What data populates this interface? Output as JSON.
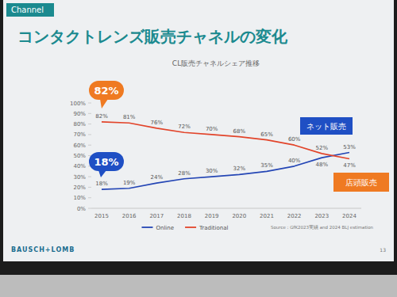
{
  "slide": {
    "tag": "Channel",
    "heading": "コンタクトレンズ販売チャネルの変化",
    "brand": "BAUSCH+LOMB",
    "page": 13
  },
  "chart_data": {
    "type": "line",
    "title": "CL販売チャネルシェア推移",
    "categories": [
      "2015",
      "2016",
      "2017",
      "2018",
      "2019",
      "2020",
      "2021",
      "2022",
      "2023",
      "2024"
    ],
    "series": [
      {
        "name": "Online",
        "color": "#2446b5",
        "values": [
          18,
          19,
          24,
          28,
          30,
          32,
          35,
          40,
          48,
          53
        ],
        "value_labels": [
          "18%",
          "19%",
          "24%",
          "28%",
          "30%",
          "32%",
          "35%",
          "40%",
          "48%",
          "53%"
        ]
      },
      {
        "name": "Traditional",
        "color": "#e2442a",
        "values": [
          82,
          81,
          76,
          72,
          70,
          68,
          65,
          60,
          52,
          47
        ],
        "value_labels": [
          "82%",
          "81%",
          "76%",
          "72%",
          "70%",
          "68%",
          "65%",
          "60%",
          "52%",
          "47%"
        ]
      }
    ],
    "ylim": [
      0,
      100
    ],
    "yticks": [
      {
        "value": 0,
        "label": "0%"
      },
      {
        "value": 10,
        "label": "10%"
      },
      {
        "value": 20,
        "label": "20%"
      },
      {
        "value": 30,
        "label": "30%"
      },
      {
        "value": 40,
        "label": "40%"
      },
      {
        "value": 50,
        "label": "50%"
      },
      {
        "value": 60,
        "label": "60%"
      },
      {
        "value": 70,
        "label": "70%"
      },
      {
        "value": 80,
        "label": "80%"
      },
      {
        "value": 90,
        "label": "90%"
      },
      {
        "value": 100,
        "label": "100%"
      }
    ],
    "grid": false,
    "legend": "bottom",
    "data_labels": true,
    "source": "Source : GfK2023実績 and 2024 BLJ estimation",
    "annotations": [
      {
        "text": "82%",
        "color": "#ef7a22"
      },
      {
        "text": "18%",
        "color": "#1f4fc4"
      },
      {
        "text": "ネット販売",
        "color": "#1f4fc4"
      },
      {
        "text": "店頭販売",
        "color": "#ef7a22"
      }
    ]
  }
}
